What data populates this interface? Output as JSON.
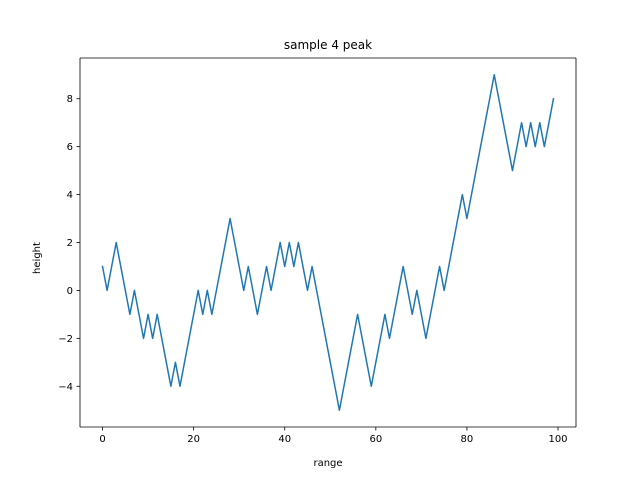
{
  "chart_data": {
    "type": "line",
    "title": "sample 4 peak",
    "xlabel": "range",
    "ylabel": "height",
    "xlim": [
      -4.95,
      103.95
    ],
    "ylim": [
      -5.7,
      9.7
    ],
    "xticks": [
      0,
      20,
      40,
      60,
      80,
      100
    ],
    "yticks": [
      -4,
      -2,
      0,
      2,
      4,
      6,
      8
    ],
    "ytick_labels": [
      "−4",
      "−2",
      "0",
      "2",
      "4",
      "6",
      "8"
    ],
    "grid": false,
    "series": [
      {
        "color": "#1f77b4",
        "x": [
          0,
          1,
          2,
          3,
          4,
          5,
          6,
          7,
          8,
          9,
          10,
          11,
          12,
          13,
          14,
          15,
          16,
          17,
          18,
          19,
          20,
          21,
          22,
          23,
          24,
          25,
          26,
          27,
          28,
          29,
          30,
          31,
          32,
          33,
          34,
          35,
          36,
          37,
          38,
          39,
          40,
          41,
          42,
          43,
          44,
          45,
          46,
          47,
          48,
          49,
          50,
          51,
          52,
          53,
          54,
          55,
          56,
          57,
          58,
          59,
          60,
          61,
          62,
          63,
          64,
          65,
          66,
          67,
          68,
          69,
          70,
          71,
          72,
          73,
          74,
          75,
          76,
          77,
          78,
          79,
          80,
          81,
          82,
          83,
          84,
          85,
          86,
          87,
          88,
          89,
          90,
          91,
          92,
          93,
          94,
          95,
          96,
          97,
          98,
          99
        ],
        "y": [
          1,
          0,
          1,
          2,
          1,
          0,
          -1,
          0,
          -1,
          -2,
          -1,
          -2,
          -1,
          -2,
          -3,
          -4,
          -3,
          -4,
          -3,
          -2,
          -1,
          0,
          -1,
          0,
          -1,
          0,
          1,
          2,
          3,
          2,
          1,
          0,
          1,
          0,
          -1,
          0,
          1,
          0,
          1,
          2,
          1,
          2,
          1,
          2,
          1,
          0,
          1,
          0,
          -1,
          -2,
          -3,
          -4,
          -5,
          -4,
          -3,
          -2,
          -1,
          -2,
          -3,
          -4,
          -3,
          -2,
          -1,
          -2,
          -1,
          0,
          1,
          0,
          -1,
          0,
          -1,
          -2,
          -1,
          0,
          1,
          0,
          1,
          2,
          3,
          4,
          3,
          4,
          5,
          6,
          7,
          8,
          9,
          8,
          7,
          6,
          5,
          6,
          7,
          6,
          7,
          6,
          7,
          6,
          7,
          8
        ]
      }
    ]
  }
}
